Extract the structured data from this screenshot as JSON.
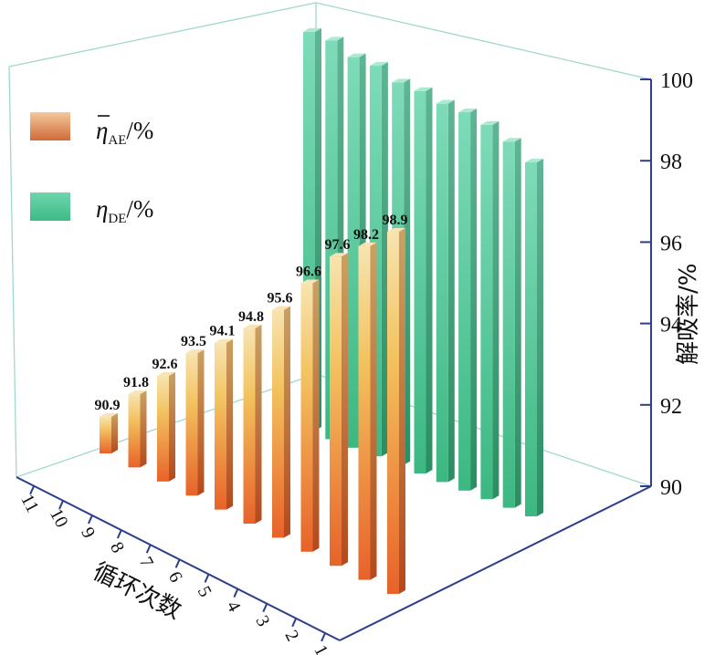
{
  "chart_data": {
    "type": "bar",
    "categories": [
      "1",
      "2",
      "3",
      "4",
      "5",
      "6",
      "7",
      "8",
      "9",
      "10",
      "11"
    ],
    "series": [
      {
        "name": "η̄_AE/%",
        "legend_main": "η",
        "legend_sub": "AE",
        "legend_tail": "/%",
        "values": [
          98.9,
          98.2,
          97.6,
          96.6,
          95.6,
          94.8,
          94.1,
          93.5,
          92.6,
          91.8,
          90.9
        ],
        "value_labels": [
          "98.9",
          "98.2",
          "97.6",
          "96.6",
          "95.6",
          "94.8",
          "94.1",
          "93.5",
          "92.6",
          "91.8",
          "90.9"
        ],
        "color_top": "#f6d28a",
        "color_bottom": "#e8682a"
      },
      {
        "name": "η_DE/%",
        "legend_main": "η",
        "legend_sub": "DE",
        "legend_tail": "/%",
        "values": [
          98.7,
          99.0,
          99.2,
          99.3,
          99.3,
          99.4,
          99.4,
          99.6,
          99.6,
          99.8,
          99.8
        ],
        "color_top": "#7fdcb8",
        "color_bottom": "#3cb983"
      }
    ],
    "xlabel": "循环次数",
    "ylabel": "解吸率/%",
    "zlim": [
      90,
      100
    ],
    "z_ticks": [
      "90",
      "92",
      "94",
      "96",
      "98",
      "100"
    ],
    "legend_position": "top-left"
  }
}
